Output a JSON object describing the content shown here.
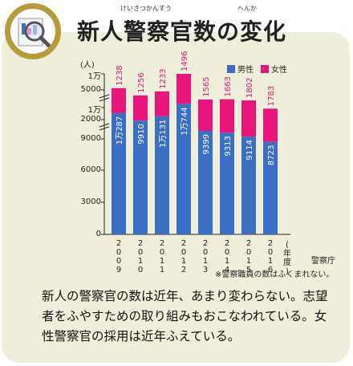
{
  "header": {
    "title": "新人警察官数の変化",
    "title_ruby_1": "けいさつかんすう",
    "title_ruby_2": "へんか"
  },
  "colors": {
    "male": "#3a6fc5",
    "female": "#e8157a",
    "card": "#efeedb",
    "accent": "#b99a3a"
  },
  "legend": {
    "male": "男性",
    "female": "女性"
  },
  "chart_data": {
    "type": "bar",
    "stacked": true,
    "y_unit": "(人)",
    "x_unit": "(年度)",
    "categories": [
      "2009",
      "2010",
      "2011",
      "2012",
      "2013",
      "2014",
      "2015",
      "2016"
    ],
    "series": [
      {
        "name": "男性",
        "values": [
          10287,
          9910,
          10131,
          10744,
          9399,
          9313,
          9114,
          8723
        ],
        "labels": [
          "1万287",
          "9910",
          "1万131",
          "1万744",
          "9399",
          "9313",
          "9114",
          "8723"
        ]
      },
      {
        "name": "女性",
        "values": [
          1238,
          1256,
          1233,
          1496,
          1565,
          1663,
          1802,
          1783
        ],
        "labels": [
          "1238",
          "1256",
          "1233",
          "1496",
          "1565",
          "1663",
          "1802",
          "1783"
        ]
      }
    ],
    "yticks": [
      "0",
      "3000",
      "6000",
      "9000",
      "2000",
      "1万",
      "5000",
      "1万"
    ],
    "scale_note": "broken axis above 9000",
    "grid": false
  },
  "source": "警察庁",
  "note": "※警察職員の数はふくまれない。",
  "body": {
    "line1": "新人の警察官の数は近年、あまり変わらない。志望",
    "line2": "者をふやすための取り組みもおこなわれている。女",
    "line3": "性警察官の採用は近年ふえている。"
  }
}
